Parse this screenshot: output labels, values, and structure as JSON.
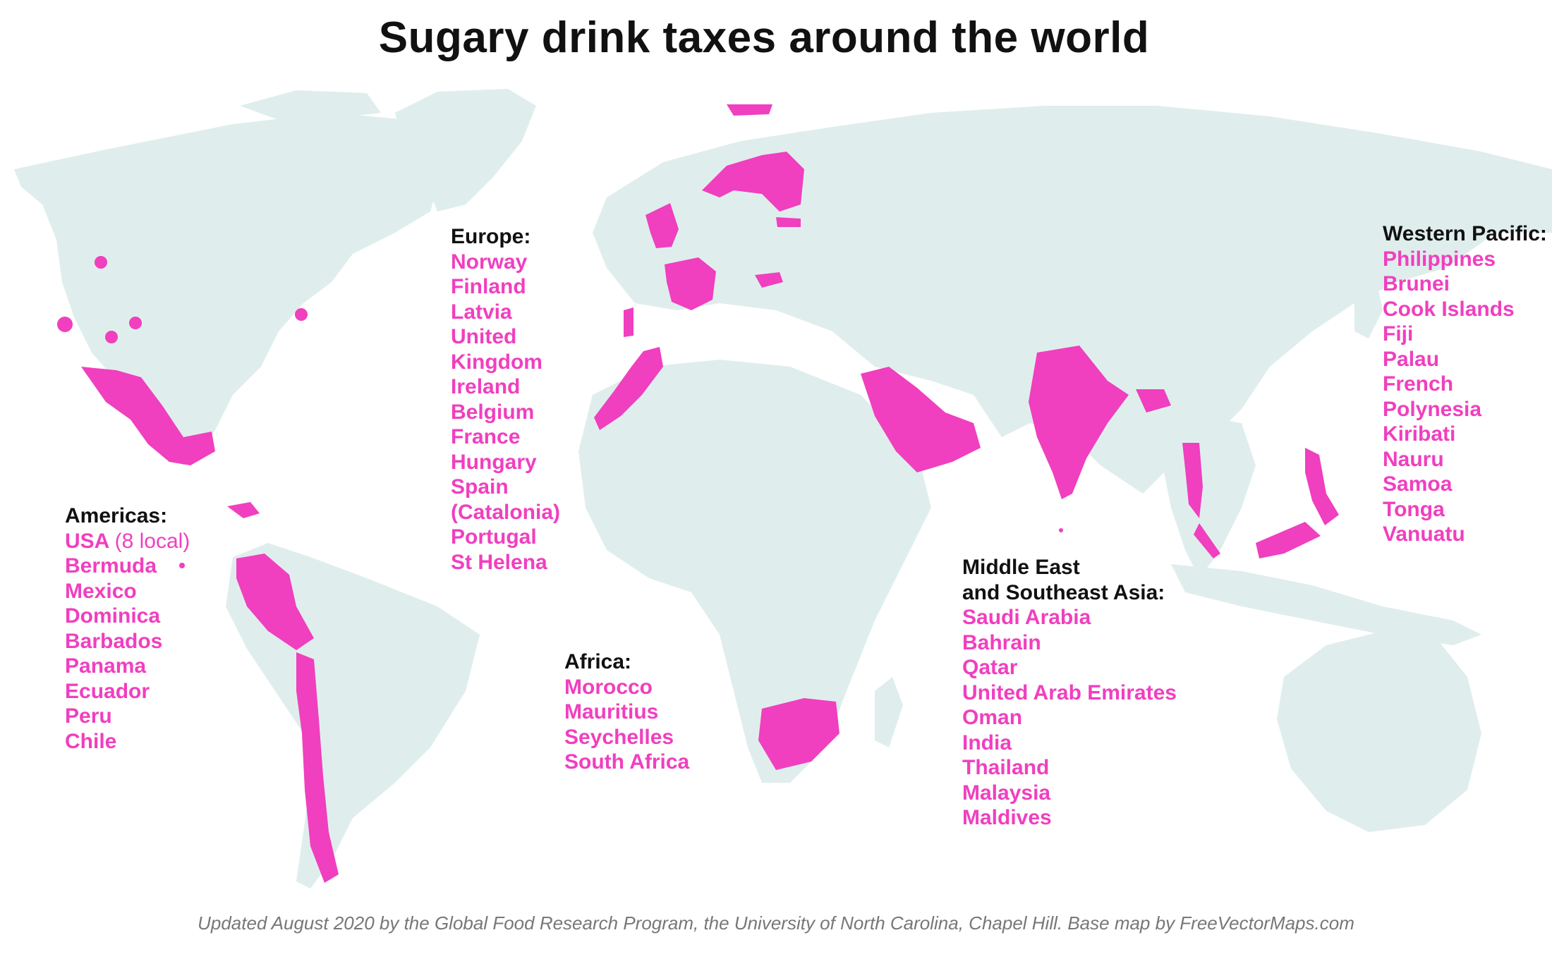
{
  "title": "Sugary drink taxes around the world",
  "colors": {
    "ocean": "#ffffff",
    "land": "#dfeeec",
    "taxed": "#f03fbf",
    "heading": "#111111",
    "footer": "#777777"
  },
  "regions": {
    "europe": {
      "heading": "Europe:",
      "countries": [
        "Norway",
        "Finland",
        "Latvia",
        "United Kingdom",
        "Ireland",
        "Belgium",
        "France",
        "Hungary",
        "Spain (Catalonia)",
        "Portugal",
        "St Helena"
      ],
      "display_lines": [
        "Norway",
        "Finland",
        "Latvia",
        "United",
        "Kingdom",
        "Ireland",
        "Belgium",
        "France",
        "Hungary",
        "Spain",
        "(Catalonia)",
        "Portugal",
        "St Helena"
      ]
    },
    "western_pacific": {
      "heading": "Western Pacific:",
      "countries": [
        "Philippines",
        "Brunei",
        "Cook Islands",
        "Fiji",
        "Palau",
        "French Polynesia",
        "Kiribati",
        "Nauru",
        "Samoa",
        "Tonga",
        "Vanuatu"
      ],
      "display_lines": [
        "Philippines",
        "Brunei",
        "Cook Islands",
        "Fiji",
        "Palau",
        "French",
        "Polynesia",
        "Kiribati",
        "Nauru",
        "Samoa",
        "Tonga",
        "Vanuatu"
      ]
    },
    "americas": {
      "heading": "Americas:",
      "usa_label": "USA",
      "usa_note": "(8 local)",
      "countries": [
        "Bermuda",
        "Mexico",
        "Dominica",
        "Barbados",
        "Panama",
        "Ecuador",
        "Peru",
        "Chile"
      ]
    },
    "africa": {
      "heading": "Africa:",
      "countries": [
        "Morocco",
        "Mauritius",
        "Seychelles",
        "South Africa"
      ]
    },
    "middle_east_se_asia": {
      "heading_line1": "Middle East",
      "heading_line2": "and Southeast Asia:",
      "countries": [
        "Saudi Arabia",
        "Bahrain",
        "Qatar",
        "United Arab Emirates",
        "Oman",
        "India",
        "Thailand",
        "Malaysia",
        "Maldives"
      ]
    }
  },
  "footer": "Updated August 2020 by the Global Food Research Program, the University of North Carolina, Chapel Hill. Base map by FreeVectorMaps.com"
}
